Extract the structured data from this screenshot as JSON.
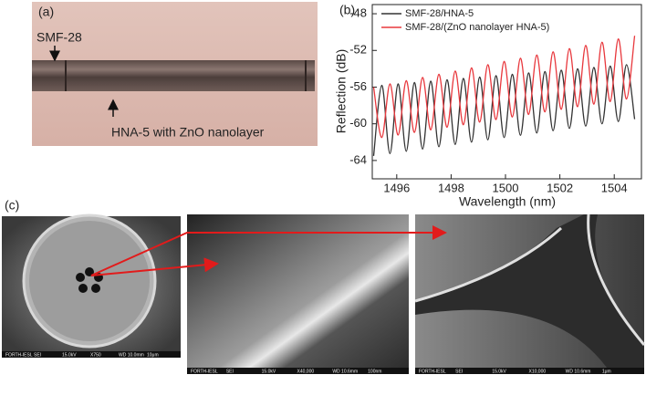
{
  "panels": {
    "a": {
      "label": "(a)",
      "annotations": [
        "SMF-28",
        "HNA-5 with ZnO nanolayer"
      ]
    },
    "c": {
      "label": "(c)",
      "sem_footers": [
        [
          "FORTH-IESL",
          "SEI",
          "15.0kV",
          "X750",
          "WD 10.0mm",
          "10μm"
        ],
        [
          "FORTH-IESL",
          "SEI",
          "15.0kV",
          "X40,000",
          "WD 10.6mm",
          "100nm"
        ],
        [
          "FORTH-IESL",
          "SEI",
          "15.0kV",
          "X10,000",
          "WD 10.6mm",
          "1μm"
        ]
      ]
    }
  },
  "chart_data": {
    "type": "line",
    "panel_label": "(b)",
    "x_label": "Wavelength (nm)",
    "y_label": "Reflection (dB)",
    "xlim": [
      1495.1,
      1505
    ],
    "xticks": [
      1496,
      1498,
      1500,
      1502,
      1504
    ],
    "ylim": [
      -66,
      -47
    ],
    "yticks": [
      -48,
      -52,
      -56,
      -60,
      -64
    ],
    "legend": "upper left",
    "x": [
      1495.15,
      1495.45,
      1495.75,
      1496.05,
      1496.35,
      1496.65,
      1496.95,
      1497.25,
      1497.55,
      1497.85,
      1498.15,
      1498.45,
      1498.75,
      1499.05,
      1499.35,
      1499.65,
      1499.95,
      1500.25,
      1500.55,
      1500.85,
      1501.15,
      1501.45,
      1501.75,
      1502.05,
      1502.35,
      1502.65,
      1502.95,
      1503.25,
      1503.55,
      1503.85,
      1504.15,
      1504.45,
      1504.75
    ],
    "series": [
      {
        "name": "SMF-28/HNA-5",
        "color": "#333333",
        "values": [
          -63.5,
          -55.8,
          -63.25,
          -55.65,
          -63.0,
          -55.5,
          -62.75,
          -55.35,
          -62.5,
          -55.2,
          -62.25,
          -55.05,
          -62.0,
          -54.9,
          -61.75,
          -54.75,
          -61.5,
          -54.6,
          -61.25,
          -54.45,
          -61.0,
          -54.3,
          -60.75,
          -54.15,
          -60.5,
          -54.0,
          -60.25,
          -53.85,
          -60.0,
          -53.7,
          -59.75,
          -53.55,
          -59.5
        ]
      },
      {
        "name": "SMF-28/(ZnO nanolayer HNA-5)",
        "color": "#e8383d",
        "values": [
          -56.0,
          -61.5,
          -55.65,
          -61.22,
          -55.3,
          -60.94,
          -54.95,
          -60.66,
          -54.6,
          -60.38,
          -54.25,
          -60.1,
          -53.9,
          -59.82,
          -53.55,
          -59.54,
          -53.2,
          -59.26,
          -52.85,
          -58.98,
          -52.5,
          -58.7,
          -52.15,
          -58.42,
          -51.8,
          -58.14,
          -51.45,
          -57.86,
          -51.1,
          -57.58,
          -50.75,
          -57.3,
          -50.4
        ]
      }
    ]
  }
}
